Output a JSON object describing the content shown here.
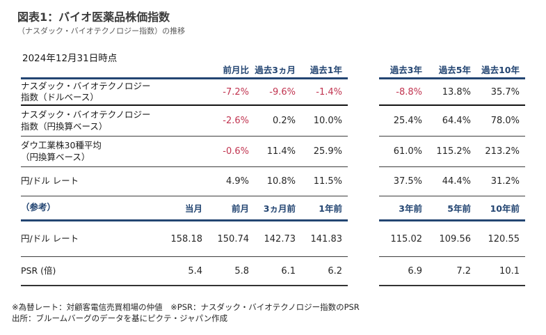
{
  "colors": {
    "accent_navy": "#234572",
    "negative_red": "#C13450",
    "body_text": "#262626"
  },
  "chart_data": {
    "type": "table",
    "title": "図表1：バイオ医薬品株価指数",
    "subtitle": "（ナスダック・バイオテクノロジー指数）の推移",
    "as_of": "2024年12月31日時点",
    "performance_table": {
      "columns": [
        "前月比",
        "過去3ヵ月",
        "過去1年",
        "過去3年",
        "過去5年",
        "過去10年"
      ],
      "rows": [
        {
          "label": [
            "ナスダック・バイオテクノロジー",
            "指数（ドルベース）"
          ],
          "values": [
            "-7.2%",
            "-9.6%",
            "-1.4%",
            "-8.8%",
            "13.8%",
            "35.7%"
          ]
        },
        {
          "label": [
            "ナスダック・バイオテクノロジー",
            "指数（円換算ベース）"
          ],
          "values": [
            "-2.6%",
            "0.2%",
            "10.0%",
            "25.4%",
            "64.4%",
            "78.0%"
          ]
        },
        {
          "label": [
            "ダウ工業株30種平均",
            "（円換算ベース）"
          ],
          "values": [
            "-0.6%",
            "11.4%",
            "25.9%",
            "61.0%",
            "115.2%",
            "213.2%"
          ]
        },
        {
          "label": [
            "円/ドル レート"
          ],
          "values": [
            "4.9%",
            "10.8%",
            "11.5%",
            "37.5%",
            "44.4%",
            "31.2%"
          ]
        }
      ]
    },
    "reference_table": {
      "section_label": "（参考）",
      "columns": [
        "当月",
        "前月",
        "3ヵ月前",
        "1年前",
        "3年前",
        "5年前",
        "10年前"
      ],
      "rows": [
        {
          "label": [
            "円/ドル レート"
          ],
          "values": [
            "158.18",
            "150.74",
            "142.73",
            "141.83",
            "115.02",
            "109.56",
            "120.55"
          ]
        },
        {
          "label": [
            "PSR (倍)"
          ],
          "values": [
            "5.4",
            "5.8",
            "6.1",
            "6.2",
            "6.9",
            "7.2",
            "10.1"
          ]
        }
      ]
    },
    "notes": [
      "※為替レート：対顧客電信売買相場の仲値　※PSR：ナスダック・バイオテクノロジー指数のPSR",
      "出所：ブルームバーグのデータを基にピクテ・ジャパン作成"
    ]
  }
}
